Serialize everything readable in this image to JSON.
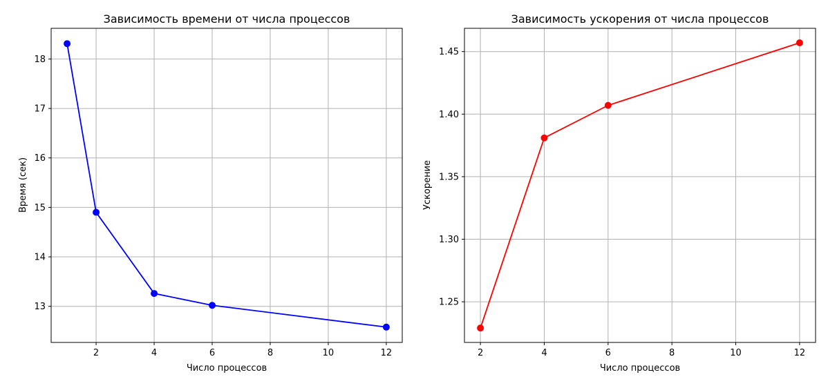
{
  "chart_data": [
    {
      "type": "line",
      "title": "Зависимость времени от числа процессов",
      "xlabel": "Число процессов",
      "ylabel": "Время (сек)",
      "x": [
        1,
        2,
        4,
        6,
        12
      ],
      "series": [
        {
          "values": [
            18.31,
            14.9,
            13.26,
            13.02,
            12.58
          ],
          "color": "#0000ff",
          "marker": "circle"
        }
      ],
      "xticks": [
        2,
        4,
        6,
        8,
        10,
        12
      ],
      "xtick_labels": [
        "2",
        "4",
        "6",
        "8",
        "10",
        "12"
      ],
      "yticks": [
        13,
        14,
        15,
        16,
        17,
        18
      ],
      "ytick_labels": [
        "13",
        "14",
        "15",
        "16",
        "17",
        "18"
      ],
      "xlim": [
        0.45,
        12.55
      ],
      "ylim": [
        12.27,
        18.62
      ],
      "grid": true
    },
    {
      "type": "line",
      "title": "Зависимость ускорения от числа процессов",
      "xlabel": "Число процессов",
      "ylabel": "Ускорение",
      "x": [
        2,
        4,
        6,
        12
      ],
      "series": [
        {
          "values": [
            1.229,
            1.381,
            1.407,
            1.457
          ],
          "color": "#ff0000",
          "marker": "circle"
        }
      ],
      "xticks": [
        2,
        4,
        6,
        8,
        10,
        12
      ],
      "xtick_labels": [
        "2",
        "4",
        "6",
        "8",
        "10",
        "12"
      ],
      "yticks": [
        1.25,
        1.3,
        1.35,
        1.4,
        1.45
      ],
      "ytick_labels": [
        "1.25",
        "1.30",
        "1.35",
        "1.40",
        "1.45"
      ],
      "xlim": [
        1.5,
        12.5
      ],
      "ylim": [
        1.2175,
        1.4686
      ],
      "grid": true
    }
  ]
}
